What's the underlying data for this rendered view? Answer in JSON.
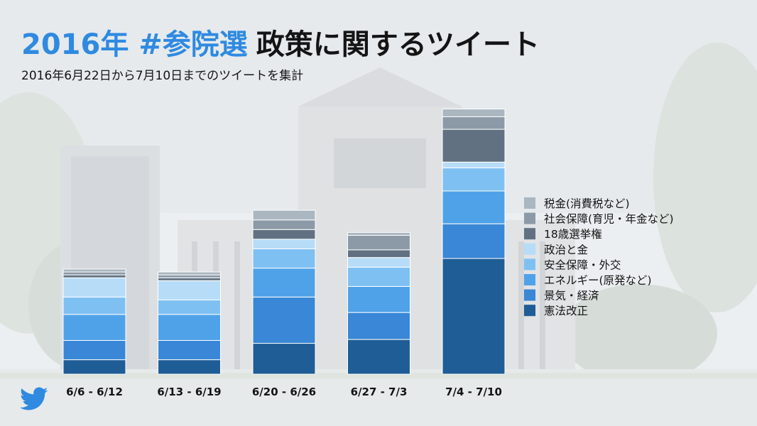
{
  "title": {
    "highlight": "2016年 #参院選",
    "main": "政策に関するツイート"
  },
  "subtitle": "2016年6月22日から7月10日までのツイートを集計",
  "icons": {
    "brand": "twitter-bird-icon"
  },
  "chart_data": {
    "type": "bar",
    "stacked": true,
    "categories": [
      "6/6 - 6/12",
      "6/13 - 6/19",
      "6/20 - 6/26",
      "6/27 - 7/3",
      "7/4 - 7/10"
    ],
    "series": [
      {
        "name": "憲法改正",
        "color": "#1f5d96",
        "values": [
          15,
          15,
          32,
          36,
          120
        ]
      },
      {
        "name": "景気・経済",
        "color": "#3987d6",
        "values": [
          20,
          20,
          48,
          28,
          36
        ]
      },
      {
        "name": "エネルギー(原発など)",
        "color": "#4fa2e8",
        "values": [
          27,
          27,
          30,
          27,
          34
        ]
      },
      {
        "name": "安全保障・外交",
        "color": "#7fc0f3",
        "values": [
          18,
          15,
          20,
          20,
          24
        ]
      },
      {
        "name": "政治と金",
        "color": "#b7dcf8",
        "values": [
          20,
          20,
          10,
          10,
          6
        ]
      },
      {
        "name": "18歳選挙権",
        "color": "#617181",
        "values": [
          3,
          3,
          10,
          8,
          34
        ]
      },
      {
        "name": "社会保障(育児・年金など)",
        "color": "#8c9aa7",
        "values": [
          3,
          3,
          10,
          15,
          13
        ]
      },
      {
        "name": "税金(消費税など)",
        "color": "#aab6c0",
        "values": [
          3,
          3,
          10,
          3,
          8
        ]
      }
    ],
    "ylim": [
      0,
      285
    ],
    "legend_position": "right",
    "legend_order": "top-down reversed"
  }
}
